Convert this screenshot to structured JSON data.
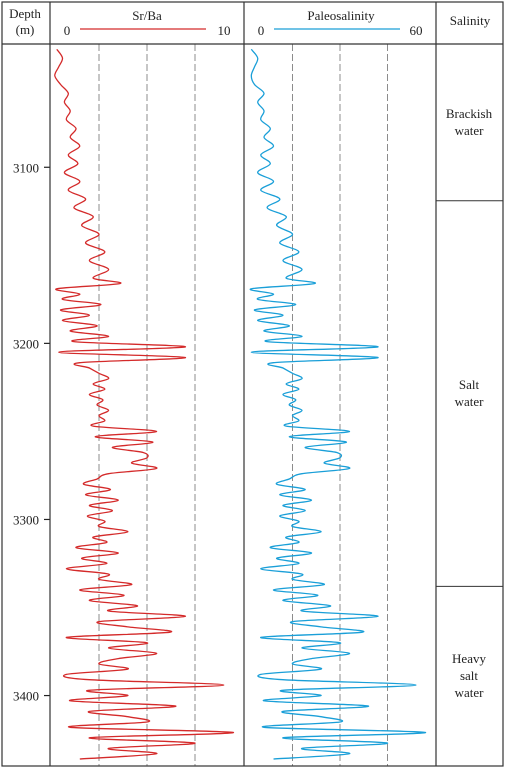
{
  "chart_data": {
    "type": "line",
    "title": "",
    "depth_axis": {
      "label": "Depth",
      "unit": "(m)",
      "ticks": [
        "3100",
        "3200",
        "3300",
        "3400"
      ],
      "range": [
        3030,
        3440
      ]
    },
    "panels": [
      {
        "name": "Sr/Ba",
        "min_label": "0",
        "max_label": "10",
        "xlim": [
          0,
          10
        ],
        "color": "#d42a2a",
        "max_label_color": "#006d6d",
        "grid": true
      },
      {
        "name": "Paleosalinity",
        "min_label": "0",
        "max_label": "60",
        "xlim": [
          0,
          60
        ],
        "color": "#1a9fd8",
        "max_label_color": "#222222",
        "grid": true
      }
    ],
    "salinity_column": {
      "label": "Salinity",
      "zones": [
        {
          "lines": [
            "Brackish",
            "water"
          ],
          "top": 3030,
          "bottom": 3119
        },
        {
          "lines": [
            "Salt",
            "water"
          ],
          "top": 3119,
          "bottom": 3338
        },
        {
          "lines": [
            "Heavy",
            "salt",
            "water"
          ],
          "top": 3338,
          "bottom": 3440
        }
      ]
    },
    "series": [
      {
        "name": "Sr/Ba",
        "depth": [
          3033,
          3038,
          3043,
          3048,
          3053,
          3058,
          3063,
          3068,
          3073,
          3078,
          3083,
          3088,
          3093,
          3098,
          3103,
          3108,
          3113,
          3118,
          3123,
          3128,
          3133,
          3138,
          3143,
          3148,
          3153,
          3158,
          3163,
          3166,
          3169,
          3172,
          3175,
          3178,
          3181,
          3184,
          3187,
          3190,
          3193,
          3196,
          3199,
          3202,
          3205,
          3208,
          3211,
          3214,
          3217,
          3220,
          3223,
          3226,
          3229,
          3232,
          3235,
          3238,
          3241,
          3244,
          3247,
          3250,
          3253,
          3256,
          3259,
          3262,
          3265,
          3268,
          3271,
          3274,
          3277,
          3280,
          3283,
          3286,
          3289,
          3292,
          3295,
          3298,
          3301,
          3304,
          3307,
          3310,
          3313,
          3316,
          3319,
          3322,
          3325,
          3328,
          3331,
          3334,
          3337,
          3340,
          3343,
          3346,
          3349,
          3352,
          3355,
          3358,
          3361,
          3364,
          3367,
          3370,
          3373,
          3376,
          3379,
          3382,
          3385,
          3388,
          3391,
          3394,
          3397,
          3400,
          3403,
          3406,
          3409,
          3412,
          3415,
          3418,
          3421,
          3424,
          3427,
          3430,
          3433,
          3436
        ],
        "values": [
          0.3,
          0.6,
          0.4,
          0.2,
          0.5,
          0.9,
          0.7,
          1.0,
          0.8,
          1.3,
          1.0,
          1.5,
          0.9,
          1.4,
          0.7,
          1.5,
          0.9,
          1.8,
          1.2,
          2.2,
          1.6,
          2.5,
          1.8,
          2.8,
          2.0,
          3.0,
          2.2,
          3.6,
          0.3,
          1.5,
          0.6,
          2.6,
          0.5,
          2.0,
          0.6,
          2.4,
          1.0,
          3.0,
          1.2,
          7.0,
          0.4,
          7.0,
          1.5,
          2.0,
          2.5,
          3.0,
          2.2,
          2.8,
          2.0,
          2.7,
          2.4,
          3.0,
          2.5,
          2.8,
          2.2,
          5.5,
          2.3,
          5.3,
          3.2,
          4.8,
          5.0,
          4.2,
          5.5,
          3.0,
          2.4,
          1.7,
          3.1,
          1.8,
          3.5,
          2.0,
          3.2,
          1.9,
          2.8,
          2.5,
          4.0,
          2.2,
          2.9,
          1.3,
          3.5,
          1.6,
          2.9,
          0.8,
          3.0,
          2.5,
          4.2,
          1.5,
          3.8,
          2.0,
          4.5,
          3.0,
          7.0,
          2.5,
          4.0,
          6.2,
          0.8,
          5.0,
          3.0,
          5.5,
          3.5,
          2.5,
          4.0,
          0.8,
          2.0,
          9.0,
          2.0,
          4.0,
          1.0,
          6.5,
          2.0,
          4.0,
          5.0,
          1.0,
          9.5,
          2.0,
          7.5,
          3.0,
          5.5,
          1.5
        ]
      },
      {
        "name": "Paleosalinity",
        "depth": [
          3033,
          3038,
          3043,
          3048,
          3053,
          3058,
          3063,
          3068,
          3073,
          3078,
          3083,
          3088,
          3093,
          3098,
          3103,
          3108,
          3113,
          3118,
          3123,
          3128,
          3133,
          3138,
          3143,
          3148,
          3153,
          3158,
          3163,
          3166,
          3169,
          3172,
          3175,
          3178,
          3181,
          3184,
          3187,
          3190,
          3193,
          3196,
          3199,
          3202,
          3205,
          3208,
          3211,
          3214,
          3217,
          3220,
          3223,
          3226,
          3229,
          3232,
          3235,
          3238,
          3241,
          3244,
          3247,
          3250,
          3253,
          3256,
          3259,
          3262,
          3265,
          3268,
          3271,
          3274,
          3277,
          3280,
          3283,
          3286,
          3289,
          3292,
          3295,
          3298,
          3301,
          3304,
          3307,
          3310,
          3313,
          3316,
          3319,
          3322,
          3325,
          3328,
          3331,
          3334,
          3337,
          3340,
          3343,
          3346,
          3349,
          3352,
          3355,
          3358,
          3361,
          3364,
          3367,
          3370,
          3373,
          3376,
          3379,
          3382,
          3385,
          3388,
          3391,
          3394,
          3397,
          3400,
          3403,
          3406,
          3409,
          3412,
          3415,
          3418,
          3421,
          3424,
          3427,
          3430,
          3433,
          3436
        ],
        "values": [
          2,
          4,
          3,
          2,
          3,
          6,
          4,
          6,
          5,
          8,
          6,
          9,
          5,
          8,
          4,
          9,
          5,
          11,
          7,
          13,
          10,
          15,
          11,
          17,
          12,
          18,
          13,
          22,
          2,
          9,
          4,
          16,
          3,
          12,
          4,
          14,
          6,
          18,
          7,
          42,
          2,
          42,
          9,
          12,
          15,
          18,
          13,
          17,
          12,
          16,
          14,
          18,
          15,
          17,
          13,
          33,
          14,
          32,
          19,
          29,
          30,
          25,
          33,
          18,
          14,
          10,
          19,
          11,
          21,
          12,
          19,
          11,
          17,
          15,
          24,
          13,
          17,
          8,
          21,
          10,
          17,
          5,
          18,
          15,
          25,
          9,
          23,
          12,
          27,
          18,
          42,
          15,
          24,
          37,
          5,
          30,
          18,
          33,
          21,
          15,
          24,
          5,
          12,
          54,
          12,
          24,
          6,
          39,
          12,
          24,
          30,
          6,
          57,
          12,
          45,
          18,
          33,
          9
        ]
      }
    ]
  }
}
